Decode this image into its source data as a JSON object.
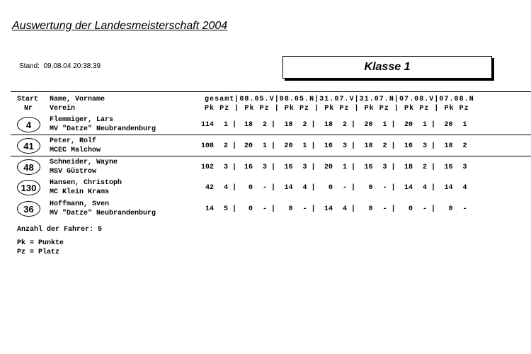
{
  "title": "Auswertung der Landesmeisterschaft 2004",
  "stand": "Stand:  09.08.04 20:38:39",
  "klasse": "Klasse 1",
  "header": {
    "start": "Start",
    "nr": "Nr",
    "name": "Name, Vorname",
    "verein": "Verein",
    "cols_line1": "gesamt|08.05.V|08.05.N|31.07.V|31.07.N|07.08.V|07.08.N",
    "cols_line2": "Pk Pz | Pk Pz | Pk Pz | Pk Pz | Pk Pz | Pk Pz | Pk Pz",
    "separator": "|"
  },
  "rows": [
    {
      "nr": "4",
      "name": "Flemmiger, Lars",
      "verein": "MV \"Datze\" Neubrandenburg",
      "results": [
        [
          "114",
          "1"
        ],
        [
          "18",
          "2"
        ],
        [
          "18",
          "2"
        ],
        [
          "18",
          "2"
        ],
        [
          "20",
          "1"
        ],
        [
          "20",
          "1"
        ],
        [
          "20",
          "1"
        ]
      ]
    },
    {
      "nr": "41",
      "name": "Peter, Rolf",
      "verein": "MCEC Malchow",
      "results": [
        [
          "108",
          "2"
        ],
        [
          "20",
          "1"
        ],
        [
          "20",
          "1"
        ],
        [
          "16",
          "3"
        ],
        [
          "18",
          "2"
        ],
        [
          "16",
          "3"
        ],
        [
          "18",
          "2"
        ]
      ]
    },
    {
      "nr": "48",
      "name": "Schneider, Wayne",
      "verein": "MSV Güstrow",
      "results": [
        [
          "102",
          "3"
        ],
        [
          "16",
          "3"
        ],
        [
          "16",
          "3"
        ],
        [
          "20",
          "1"
        ],
        [
          "16",
          "3"
        ],
        [
          "18",
          "2"
        ],
        [
          "16",
          "3"
        ]
      ]
    },
    {
      "nr": "130",
      "name": "Hansen, Christoph",
      "verein": "MC Klein Krams",
      "results": [
        [
          "42",
          "4"
        ],
        [
          "0",
          "-"
        ],
        [
          "14",
          "4"
        ],
        [
          "0",
          "-"
        ],
        [
          "0",
          "-"
        ],
        [
          "14",
          "4"
        ],
        [
          "14",
          "4"
        ]
      ]
    },
    {
      "nr": "36",
      "name": "Hoffmann, Sven",
      "verein": "MV \"Datze\" Neubrandenburg",
      "results": [
        [
          "14",
          "5"
        ],
        [
          "0",
          "-"
        ],
        [
          "0",
          "-"
        ],
        [
          "14",
          "4"
        ],
        [
          "0",
          "-"
        ],
        [
          "0",
          "-"
        ],
        [
          "0",
          "-"
        ]
      ]
    }
  ],
  "footer": {
    "count": "Anzahl der Fahrer: 5",
    "legend_pk": "Pk = Punkte",
    "legend_pz": "Pz = Platz"
  }
}
